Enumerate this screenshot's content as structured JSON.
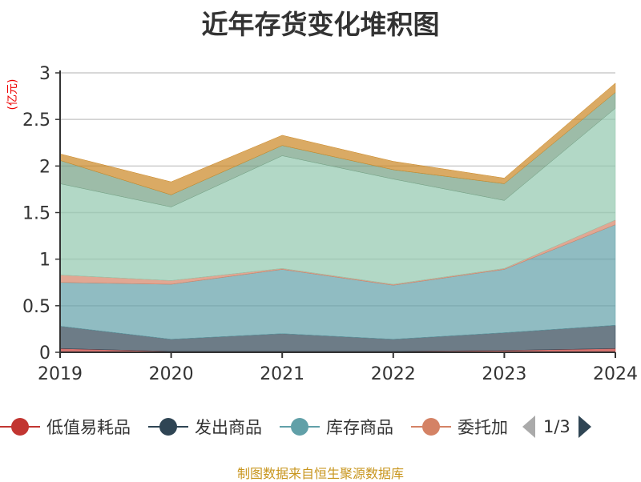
{
  "chart_data": {
    "type": "area",
    "stacked": true,
    "title": "近年存货变化堆积图",
    "ylabel": "(亿元)",
    "xlabel": "",
    "categories": [
      "2019",
      "2020",
      "2021",
      "2022",
      "2023",
      "2024"
    ],
    "ylim": [
      0,
      3
    ],
    "yticks": [
      "0",
      "0.5",
      "1",
      "1.5",
      "2",
      "2.5",
      "3"
    ],
    "grid": true,
    "legend_position": "bottom",
    "series": [
      {
        "name": "低值易耗品",
        "color": "#c23531",
        "values": [
          0.04,
          0.01,
          0.01,
          0.01,
          0.02,
          0.04
        ]
      },
      {
        "name": "发出商品",
        "color": "#2f4554",
        "values": [
          0.24,
          0.13,
          0.19,
          0.13,
          0.19,
          0.25
        ]
      },
      {
        "name": "库存商品",
        "color": "#61a0a8",
        "values": [
          0.47,
          0.59,
          0.69,
          0.58,
          0.68,
          1.08
        ]
      },
      {
        "name": "委托加",
        "color": "#d48265",
        "values": [
          0.08,
          0.04,
          0.01,
          0.01,
          0.01,
          0.05
        ]
      },
      {
        "color": "#91c7ae",
        "values": [
          0.98,
          0.79,
          1.21,
          1.13,
          0.73,
          1.2
        ]
      },
      {
        "color": "#749f83",
        "values": [
          0.25,
          0.13,
          0.11,
          0.1,
          0.18,
          0.17
        ]
      },
      {
        "color": "#ca8622",
        "values": [
          0.07,
          0.14,
          0.11,
          0.09,
          0.06,
          0.1
        ]
      }
    ]
  },
  "legend": {
    "page": "1/3",
    "visible_count": 4
  },
  "footer": "制图数据来自恒生聚源数据库"
}
